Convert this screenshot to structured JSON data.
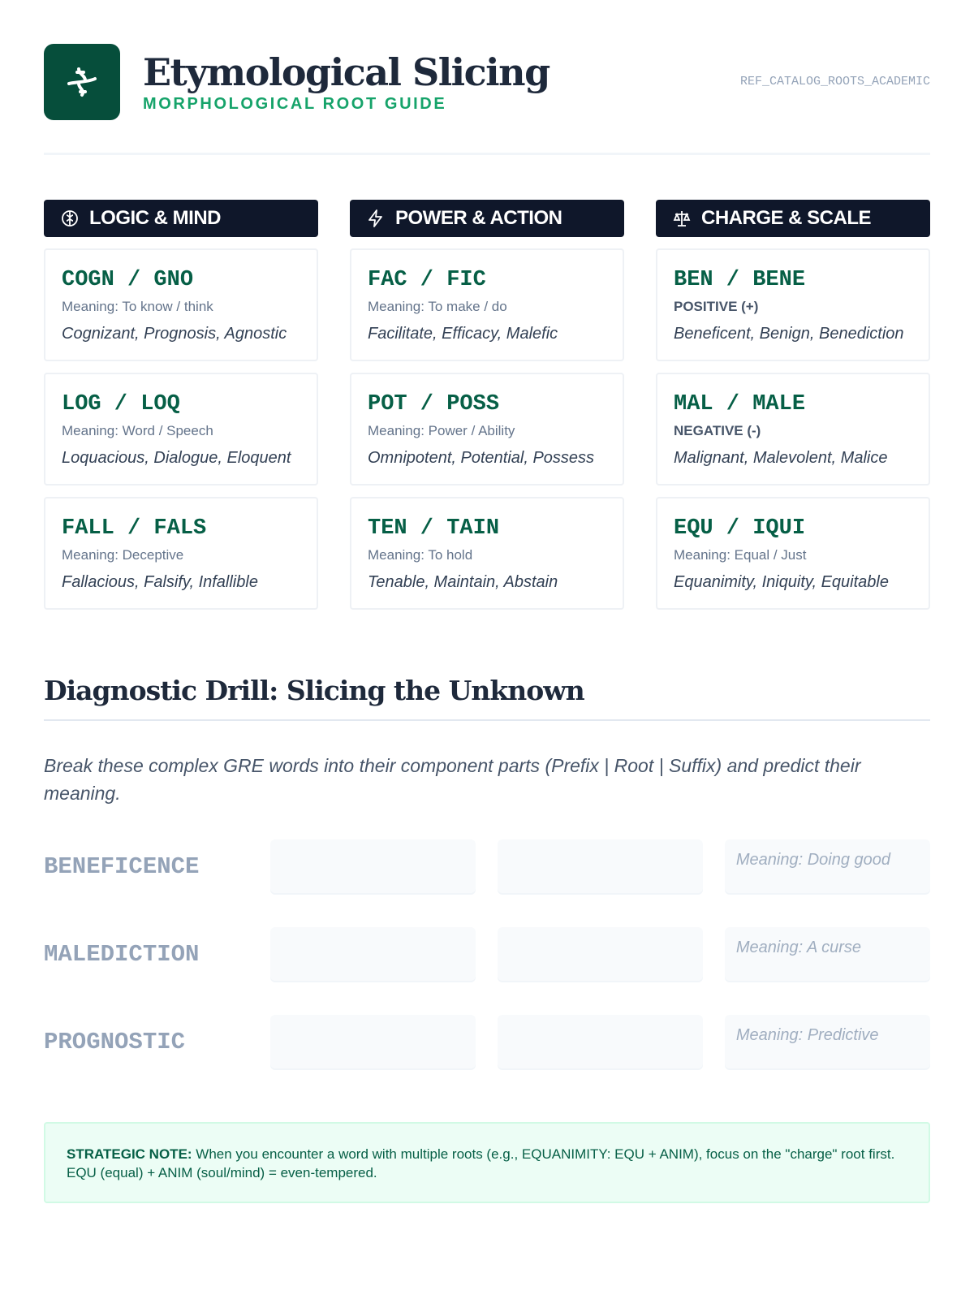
{
  "header": {
    "title": "Etymological Slicing",
    "subtitle": "MORPHOLOGICAL ROOT GUIDE",
    "ref": "REF_CATALOG_ROOTS_ACADEMIC",
    "logo_icon": "dna-icon",
    "brand_color": "#064e3b",
    "accent": "#16a36a"
  },
  "columns": [
    {
      "title": "LOGIC & MIND",
      "icon": "brain-icon",
      "cards": [
        {
          "root": "COGN / GNO",
          "meaning": "Meaning: To know / think",
          "examples": "Cognizant, Prognosis, Agnostic"
        },
        {
          "root": "LOG / LOQ",
          "meaning": "Meaning: Word / Speech",
          "examples": "Loquacious, Dialogue, Eloquent"
        },
        {
          "root": "FALL / FALS",
          "meaning": "Meaning: Deceptive",
          "examples": "Fallacious, Falsify, Infallible"
        }
      ]
    },
    {
      "title": "POWER & ACTION",
      "icon": "lightning-icon",
      "cards": [
        {
          "root": "FAC / FIC",
          "meaning": "Meaning: To make / do",
          "examples": "Facilitate, Efficacy, Malefic"
        },
        {
          "root": "POT / POSS",
          "meaning": "Meaning: Power / Ability",
          "examples": "Omnipotent, Potential, Possess"
        },
        {
          "root": "TEN / TAIN",
          "meaning": "Meaning: To hold",
          "examples": "Tenable, Maintain, Abstain"
        }
      ]
    },
    {
      "title": "CHARGE & SCALE",
      "icon": "scale-icon",
      "cards": [
        {
          "root": "BEN / BENE",
          "charge": "POSITIVE (+)",
          "examples": "Beneficent, Benign, Benediction"
        },
        {
          "root": "MAL / MALE",
          "charge": "NEGATIVE (-)",
          "examples": "Malignant, Malevolent, Malice"
        },
        {
          "root": "EQU / IQUI",
          "meaning": "Meaning: Equal / Just",
          "examples": "Equanimity, Iniquity, Equitable"
        }
      ]
    }
  ],
  "drill": {
    "title": "Diagnostic Drill: Slicing the Unknown",
    "intro": "Break these complex GRE words into their component parts (Prefix | Root | Suffix) and predict their meaning.",
    "rows": [
      {
        "word": "BENEFICENCE",
        "meaning": "Meaning: Doing good"
      },
      {
        "word": "MALEDICTION",
        "meaning": "Meaning: A curse"
      },
      {
        "word": "PROGNOSTIC",
        "meaning": "Meaning: Predictive"
      }
    ]
  },
  "note": {
    "label": "STRATEGIC NOTE:",
    "text": " When you encounter a word with multiple roots (e.g., EQUANIMITY: EQU + ANIM), focus on the \"charge\" root first. EQU (equal) + ANIM (soul/mind) = even-tempered."
  }
}
